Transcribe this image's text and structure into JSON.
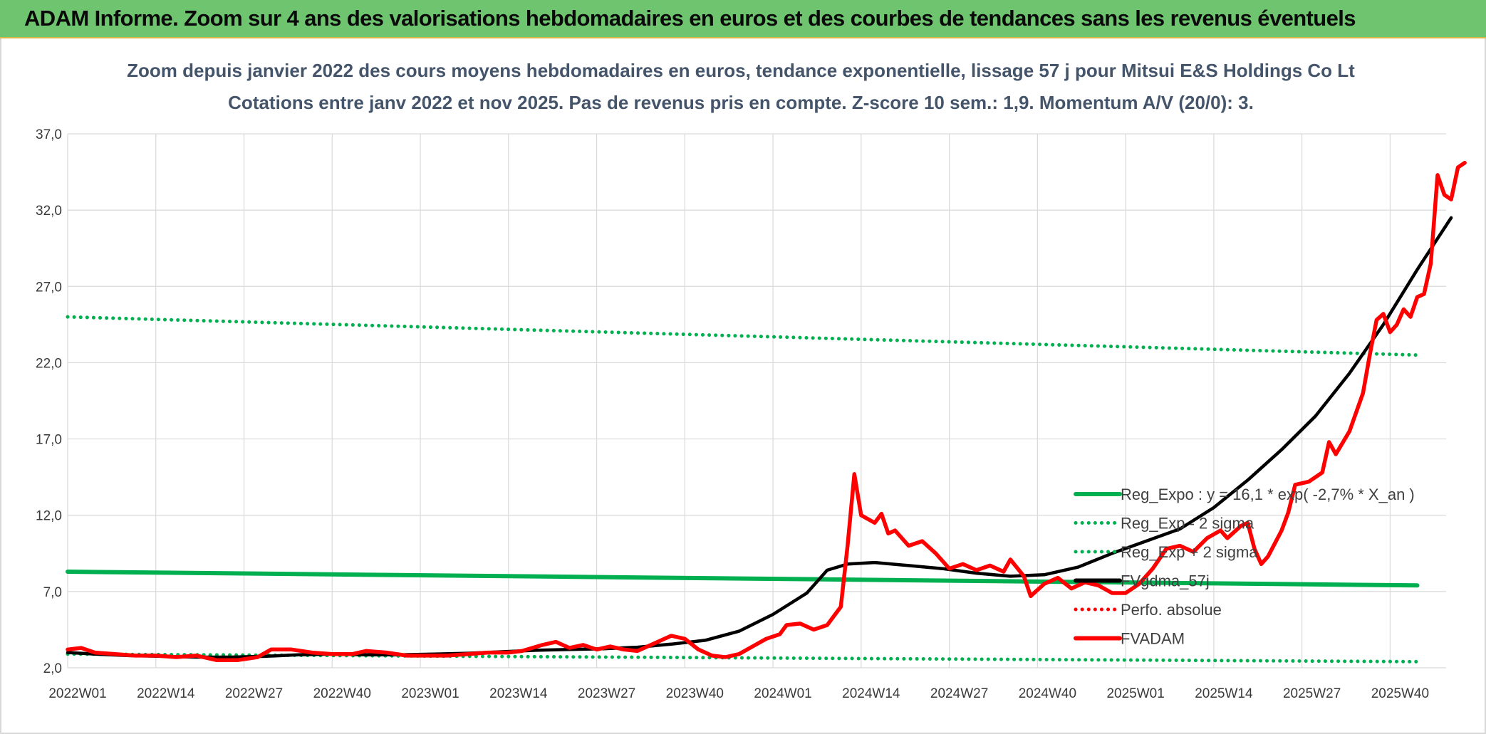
{
  "header": {
    "title": "ADAM Informe. Zoom sur 4 ans des valorisations hebdomadaires en euros et des courbes de tendances sans les revenus éventuels"
  },
  "chart_data": {
    "type": "line",
    "title": "Zoom depuis janvier 2022 des cours moyens hebdomadaires en euros, tendance exponentielle, lissage 57 j pour Mitsui E&S Holdings Co Lt",
    "subtitle": "Cotations entre janv 2022 et nov 2025. Pas de revenus pris en compte. Z-score 10 sem.: 1,9. Momentum A/V (20/0): 3.",
    "xlabel": "",
    "ylabel": "",
    "ylim": [
      2.0,
      37.0
    ],
    "y_ticks": [
      "2,0",
      "7,0",
      "12,0",
      "17,0",
      "22,0",
      "27,0",
      "32,0",
      "37,0"
    ],
    "x_range": [
      1,
      200
    ],
    "x_ticks": [
      {
        "label": "2022W01",
        "x": 1
      },
      {
        "label": "2022W14",
        "x": 14
      },
      {
        "label": "2022W27",
        "x": 27
      },
      {
        "label": "2022W40",
        "x": 40
      },
      {
        "label": "2023W01",
        "x": 53
      },
      {
        "label": "2023W14",
        "x": 66
      },
      {
        "label": "2023W27",
        "x": 79
      },
      {
        "label": "2023W40",
        "x": 92
      },
      {
        "label": "2024W01",
        "x": 105
      },
      {
        "label": "2024W14",
        "x": 118
      },
      {
        "label": "2024W27",
        "x": 131
      },
      {
        "label": "2024W40",
        "x": 144
      },
      {
        "label": "2025W01",
        "x": 157
      },
      {
        "label": "2025W14",
        "x": 170
      },
      {
        "label": "2025W27",
        "x": 183
      },
      {
        "label": "2025W40",
        "x": 196
      }
    ],
    "grid": true,
    "legend_position": "right",
    "series": [
      {
        "name": "Reg_Expo : y = 16,1 * exp( -2,7% *  X_an )",
        "color": "#00b050",
        "style": "solid",
        "points": [
          [
            1,
            8.3
          ],
          [
            200,
            7.4
          ]
        ]
      },
      {
        "name": "Reg_Exp - 2 sigma",
        "color": "#00b050",
        "style": "dotted",
        "points": [
          [
            1,
            2.9
          ],
          [
            200,
            2.4
          ]
        ]
      },
      {
        "name": "Reg_Exp + 2 sigma",
        "color": "#00b050",
        "style": "dotted",
        "points": [
          [
            1,
            25.0
          ],
          [
            200,
            22.5
          ]
        ]
      },
      {
        "name": "FVgdma_57j",
        "color": "#000000",
        "style": "solid",
        "points": [
          [
            1,
            3.0
          ],
          [
            5,
            2.9
          ],
          [
            10,
            2.8
          ],
          [
            15,
            2.75
          ],
          [
            20,
            2.7
          ],
          [
            25,
            2.7
          ],
          [
            30,
            2.75
          ],
          [
            35,
            2.85
          ],
          [
            40,
            2.9
          ],
          [
            45,
            2.85
          ],
          [
            50,
            2.85
          ],
          [
            55,
            2.9
          ],
          [
            60,
            2.95
          ],
          [
            65,
            3.05
          ],
          [
            70,
            3.15
          ],
          [
            75,
            3.2
          ],
          [
            80,
            3.25
          ],
          [
            85,
            3.35
          ],
          [
            90,
            3.55
          ],
          [
            95,
            3.8
          ],
          [
            100,
            4.4
          ],
          [
            105,
            5.5
          ],
          [
            110,
            6.9
          ],
          [
            113,
            8.4
          ],
          [
            116,
            8.8
          ],
          [
            120,
            8.9
          ],
          [
            125,
            8.7
          ],
          [
            130,
            8.5
          ],
          [
            135,
            8.2
          ],
          [
            140,
            8.0
          ],
          [
            145,
            8.1
          ],
          [
            150,
            8.6
          ],
          [
            155,
            9.5
          ],
          [
            160,
            10.3
          ],
          [
            165,
            11.1
          ],
          [
            170,
            12.5
          ],
          [
            175,
            14.3
          ],
          [
            180,
            16.3
          ],
          [
            185,
            18.5
          ],
          [
            190,
            21.3
          ],
          [
            195,
            24.5
          ],
          [
            200,
            28.1
          ],
          [
            205,
            31.5
          ]
        ]
      },
      {
        "name": "Perfo. absolue",
        "color": "#ff0000",
        "style": "dotted",
        "points": []
      },
      {
        "name": "FVADAM",
        "color": "#ff0000",
        "style": "solid",
        "points": [
          [
            1,
            3.2
          ],
          [
            3,
            3.3
          ],
          [
            5,
            3.0
          ],
          [
            8,
            2.9
          ],
          [
            11,
            2.8
          ],
          [
            14,
            2.8
          ],
          [
            17,
            2.7
          ],
          [
            20,
            2.8
          ],
          [
            23,
            2.5
          ],
          [
            26,
            2.5
          ],
          [
            29,
            2.7
          ],
          [
            31,
            3.2
          ],
          [
            34,
            3.2
          ],
          [
            37,
            3.0
          ],
          [
            40,
            2.9
          ],
          [
            43,
            2.9
          ],
          [
            45,
            3.1
          ],
          [
            48,
            3.0
          ],
          [
            51,
            2.8
          ],
          [
            54,
            2.8
          ],
          [
            57,
            2.8
          ],
          [
            60,
            2.9
          ],
          [
            63,
            3.0
          ],
          [
            66,
            3.0
          ],
          [
            68,
            3.1
          ],
          [
            71,
            3.5
          ],
          [
            73,
            3.7
          ],
          [
            75,
            3.3
          ],
          [
            77,
            3.5
          ],
          [
            79,
            3.2
          ],
          [
            81,
            3.4
          ],
          [
            83,
            3.2
          ],
          [
            85,
            3.1
          ],
          [
            87,
            3.5
          ],
          [
            89,
            3.9
          ],
          [
            90,
            4.1
          ],
          [
            92,
            3.9
          ],
          [
            94,
            3.2
          ],
          [
            96,
            2.8
          ],
          [
            98,
            2.7
          ],
          [
            100,
            2.9
          ],
          [
            102,
            3.4
          ],
          [
            104,
            3.9
          ],
          [
            106,
            4.2
          ],
          [
            107,
            4.8
          ],
          [
            109,
            4.9
          ],
          [
            111,
            4.5
          ],
          [
            113,
            4.8
          ],
          [
            115,
            6.0
          ],
          [
            116,
            10.0
          ],
          [
            117,
            14.7
          ],
          [
            118,
            12.0
          ],
          [
            120,
            11.5
          ],
          [
            121,
            12.1
          ],
          [
            122,
            10.8
          ],
          [
            123,
            11.0
          ],
          [
            125,
            10.0
          ],
          [
            127,
            10.3
          ],
          [
            129,
            9.5
          ],
          [
            131,
            8.5
          ],
          [
            133,
            8.8
          ],
          [
            135,
            8.4
          ],
          [
            137,
            8.7
          ],
          [
            139,
            8.3
          ],
          [
            140,
            9.1
          ],
          [
            142,
            8.0
          ],
          [
            143,
            6.7
          ],
          [
            145,
            7.5
          ],
          [
            147,
            7.9
          ],
          [
            149,
            7.2
          ],
          [
            151,
            7.6
          ],
          [
            153,
            7.4
          ],
          [
            155,
            6.9
          ],
          [
            157,
            6.9
          ],
          [
            159,
            7.5
          ],
          [
            161,
            8.5
          ],
          [
            163,
            9.8
          ],
          [
            165,
            10.0
          ],
          [
            167,
            9.6
          ],
          [
            169,
            10.5
          ],
          [
            171,
            11.0
          ],
          [
            172,
            10.5
          ],
          [
            174,
            11.3
          ],
          [
            175,
            11.5
          ],
          [
            176,
            9.8
          ],
          [
            177,
            8.8
          ],
          [
            178,
            9.3
          ],
          [
            180,
            11.0
          ],
          [
            181,
            12.2
          ],
          [
            182,
            14.0
          ],
          [
            184,
            14.2
          ],
          [
            186,
            14.8
          ],
          [
            187,
            16.8
          ],
          [
            188,
            16.0
          ],
          [
            190,
            17.5
          ],
          [
            192,
            20.0
          ],
          [
            193,
            22.5
          ],
          [
            194,
            24.8
          ],
          [
            195,
            25.2
          ],
          [
            196,
            24.0
          ],
          [
            197,
            24.5
          ],
          [
            198,
            25.5
          ],
          [
            199,
            25.0
          ],
          [
            200,
            26.3
          ],
          [
            201,
            26.5
          ],
          [
            202,
            28.5
          ],
          [
            203,
            34.3
          ],
          [
            204,
            33.0
          ],
          [
            205,
            32.7
          ],
          [
            206,
            34.8
          ],
          [
            207,
            35.1
          ]
        ]
      }
    ]
  }
}
